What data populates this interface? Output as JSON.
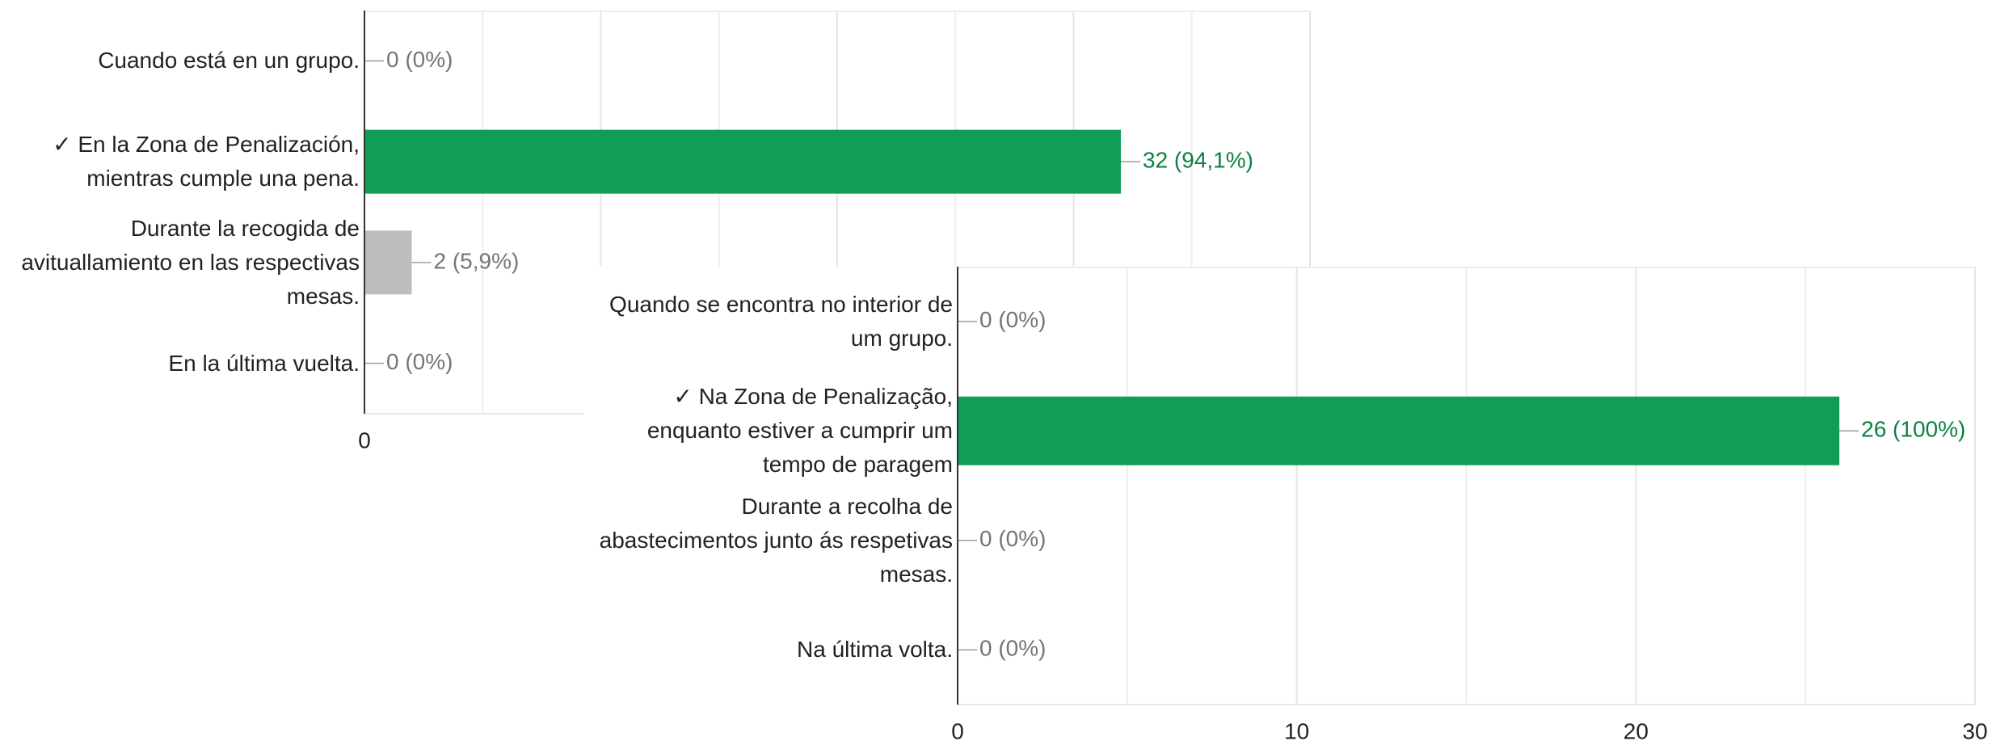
{
  "chart_data": [
    {
      "type": "bar",
      "orientation": "horizontal",
      "categories": [
        "Cuando está en un grupo.",
        "✓ En la Zona de Penalización, mientras cumple una pena.",
        "Durante la recogida de avituallamiento en las respectivas mesas.",
        "En la última vuelta."
      ],
      "values": [
        0,
        32,
        2,
        0
      ],
      "value_labels": [
        "0 (0%)",
        "32 (94,1%)",
        "2 (5,9%)",
        "0 (0%)"
      ],
      "colors": [
        "#bdbdbd",
        "#0f9d58",
        "#bdbdbd",
        "#bdbdbd"
      ],
      "label_colors": [
        "#757575",
        "#0b8043",
        "#757575",
        "#757575"
      ],
      "xlim": [
        0,
        40
      ],
      "xticks": [
        0,
        10,
        20,
        30,
        40
      ],
      "minor_xticks": [
        5,
        15,
        25,
        35
      ],
      "grid": true
    },
    {
      "type": "bar",
      "orientation": "horizontal",
      "categories": [
        "Quando se encontra no interior de um grupo.",
        "✓ Na Zona de Penalização, enquanto estiver a cumprir um tempo de paragem",
        "Durante a recolha de abastecimentos junto ás respetivas mesas.",
        "Na última volta."
      ],
      "values": [
        0,
        26,
        0,
        0
      ],
      "value_labels": [
        "0 (0%)",
        "26 (100%)",
        "0 (0%)",
        "0 (0%)"
      ],
      "colors": [
        "#bdbdbd",
        "#0f9d58",
        "#bdbdbd",
        "#bdbdbd"
      ],
      "label_colors": [
        "#757575",
        "#0b8043",
        "#757575",
        "#757575"
      ],
      "xlim": [
        0,
        30
      ],
      "xticks": [
        0,
        10,
        20,
        30
      ],
      "minor_xticks": [
        5,
        15,
        25
      ],
      "grid": true
    }
  ]
}
